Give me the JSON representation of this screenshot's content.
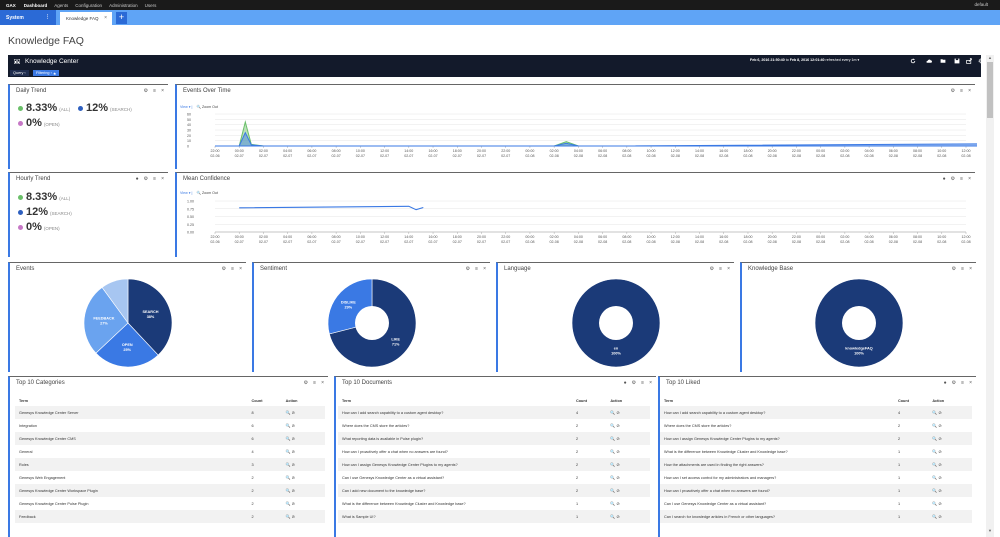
{
  "topbar": {
    "brand": "GAX",
    "nav": [
      "Dashboard",
      "Agents",
      "Configuration",
      "Administration",
      "Users"
    ],
    "user": "default"
  },
  "tabs": {
    "system_label": "System",
    "system_menu": "⋮",
    "active_tab": "Knowledge FAQ",
    "close": "×",
    "add": "+"
  },
  "page": {
    "title": "Knowledge FAQ"
  },
  "dashboard": {
    "title": "Knowledge Center",
    "range_from": "Feb 6, 2016 21:50:40",
    "range_to": "Feb 8, 2016 12:01:40",
    "range_sep": "to",
    "refresh": "refreshed every 1m",
    "filters": {
      "query": "Query",
      "filtering": "Filtering"
    }
  },
  "panels": {
    "daily_trend": {
      "title": "Daily Trend",
      "kpis": [
        {
          "value": "8.33%",
          "label": "(ALL)",
          "color": "#6abf69"
        },
        {
          "value": "12%",
          "label": "(SEARCH)",
          "color": "#2d5fbf"
        },
        {
          "value": "0%",
          "label": "(OPEN)",
          "color": "#c678c6"
        }
      ]
    },
    "hourly_trend": {
      "title": "Hourly Trend",
      "kpis": [
        {
          "value": "8.33%",
          "label": "(ALL)",
          "color": "#6abf69"
        },
        {
          "value": "12%",
          "label": "(SEARCH)",
          "color": "#2d5fbf"
        },
        {
          "value": "0%",
          "label": "(OPEN)",
          "color": "#c678c6"
        }
      ]
    },
    "events_over_time": {
      "title": "Events Over Time",
      "view": "View",
      "zoom_out": "Zoom Out"
    },
    "mean_confidence": {
      "title": "Mean Confidence",
      "view": "View",
      "zoom_out": "Zoom Out"
    },
    "events": {
      "title": "Events"
    },
    "sentiment": {
      "title": "Sentiment"
    },
    "language": {
      "title": "Language"
    },
    "knowledge_base": {
      "title": "Knowledge Base"
    },
    "tools": {
      "gear": "⚙",
      "menu": "≡",
      "close": "×",
      "info": "●"
    }
  },
  "chart_data": [
    {
      "type": "area",
      "panel": "Events Over Time",
      "x_tick_times": [
        "22:00",
        "00:00",
        "02:00",
        "04:00",
        "06:00",
        "08:00",
        "10:00",
        "12:00",
        "14:00",
        "16:00",
        "18:00",
        "20:00",
        "22:00",
        "00:00",
        "02:00",
        "04:00",
        "06:00",
        "08:00",
        "10:00",
        "12:00",
        "14:00",
        "16:00",
        "18:00",
        "20:00",
        "22:00",
        "00:00",
        "02:00",
        "04:00",
        "06:00",
        "08:00",
        "10:00",
        "12:00"
      ],
      "x_tick_dates": [
        "02-06",
        "02-07",
        "02-07",
        "02-07",
        "02-07",
        "02-07",
        "02-07",
        "02-07",
        "02-07",
        "02-07",
        "02-07",
        "02-07",
        "02-07",
        "02-08",
        "02-08",
        "02-08",
        "02-08",
        "02-08",
        "02-08",
        "02-08",
        "02-08",
        "02-08",
        "02-08",
        "02-08",
        "02-08",
        "02-08",
        "02-08",
        "02-08",
        "02-08",
        "02-08",
        "02-08",
        "02-08"
      ],
      "y_ticks": [
        "60",
        "50",
        "40",
        "30",
        "20",
        "10",
        "0"
      ],
      "ylim": [
        0,
        60
      ],
      "series": [
        {
          "color": "#6abf69",
          "x": [
            0,
            1,
            1.25,
            1.5,
            2,
            14,
            14.5,
            15,
            16,
            31.5,
            32
          ],
          "y": [
            0,
            0,
            45,
            3,
            0,
            0,
            8,
            0,
            0,
            0,
            0
          ]
        },
        {
          "color": "#3a79e4",
          "x": [
            0,
            1,
            1.25,
            1.5,
            2,
            14,
            14.5,
            15,
            16,
            31.5,
            32
          ],
          "y": [
            0,
            0,
            25,
            2,
            0,
            0,
            5,
            0,
            0,
            4,
            0
          ]
        }
      ]
    },
    {
      "type": "line",
      "panel": "Mean Confidence",
      "x_tick_times": [
        "22:00",
        "00:00",
        "02:00",
        "04:00",
        "06:00",
        "08:00",
        "10:00",
        "12:00",
        "14:00",
        "16:00",
        "18:00",
        "20:00",
        "22:00",
        "00:00",
        "02:00",
        "04:00",
        "06:00",
        "08:00",
        "10:00",
        "12:00",
        "14:00",
        "16:00",
        "18:00",
        "20:00",
        "22:00",
        "00:00",
        "02:00",
        "04:00",
        "06:00",
        "08:00",
        "10:00",
        "12:00"
      ],
      "x_tick_dates": [
        "02-06",
        "02-07",
        "02-07",
        "02-07",
        "02-07",
        "02-07",
        "02-07",
        "02-07",
        "02-07",
        "02-07",
        "02-07",
        "02-07",
        "02-07",
        "02-08",
        "02-08",
        "02-08",
        "02-08",
        "02-08",
        "02-08",
        "02-08",
        "02-08",
        "02-08",
        "02-08",
        "02-08",
        "02-08",
        "02-08",
        "02-08",
        "02-08",
        "02-08",
        "02-08",
        "02-08",
        "02-08"
      ],
      "y_ticks": [
        "1.00",
        "0.75",
        "0.50",
        "0.25",
        "0.00"
      ],
      "ylim": [
        0,
        1
      ],
      "series": [
        {
          "color": "#3a79e4",
          "x": [
            1,
            8,
            8.3,
            8.6
          ],
          "y": [
            0.78,
            0.83,
            0.72,
            0.79
          ]
        }
      ]
    },
    {
      "type": "pie",
      "panel": "Events",
      "slices": [
        {
          "label": "SEARCH",
          "pct": "38%",
          "value": 38,
          "color": "#1b3a78",
          "text": "#ffffff"
        },
        {
          "label": "OPEN",
          "pct": "25%",
          "value": 25,
          "color": "#3a79e4",
          "text": "#ffffff"
        },
        {
          "label": "FEEDBACK",
          "pct": "27%",
          "value": 27,
          "color": "#6aa3ef",
          "text": "#ffffff"
        },
        {
          "label": "",
          "pct": "",
          "value": 10,
          "color": "#a7c6f1",
          "text": "#ffffff"
        }
      ]
    },
    {
      "type": "pie",
      "panel": "Sentiment",
      "slices": [
        {
          "label": "LIKE",
          "pct": "71%",
          "value": 71,
          "color": "#1b3a78",
          "text": "#ffffff"
        },
        {
          "label": "DISLIKE",
          "pct": "29%",
          "value": 29,
          "color": "#3a79e4",
          "text": "#ffffff"
        }
      ]
    },
    {
      "type": "pie",
      "panel": "Language",
      "slices": [
        {
          "label": "en",
          "pct": "100%",
          "value": 100,
          "color": "#1b3a78",
          "text": "#ffffff"
        }
      ]
    },
    {
      "type": "pie",
      "panel": "Knowledge Base",
      "slices": [
        {
          "label": "knowledgeFAQ",
          "pct": "100%",
          "value": 100,
          "color": "#1b3a78",
          "text": "#ffffff"
        }
      ]
    }
  ],
  "tables": {
    "top_categories": {
      "title": "Top 10 Categories",
      "headers": [
        "Term",
        "Count",
        "Action"
      ],
      "rows": [
        [
          "Genesys Knowledge Center Server",
          "8"
        ],
        [
          "Integration",
          "6"
        ],
        [
          "Genesys Knowledge Center CMS",
          "6"
        ],
        [
          "General",
          "4"
        ],
        [
          "Roles",
          "3"
        ],
        [
          "Genesys Web Engagement",
          "2"
        ],
        [
          "Genesys Knowledge Center Workspace Plugin",
          "2"
        ],
        [
          "Genesys Knowledge Center Pulse Plugin",
          "2"
        ],
        [
          "Feedback",
          "2"
        ]
      ]
    },
    "top_documents": {
      "title": "Top 10 Documents",
      "headers": [
        "Term",
        "Count",
        "Action"
      ],
      "rows": [
        [
          "How can I add search capability to a custom agent desktop?",
          "4"
        ],
        [
          "Where does the CMS store the articles?",
          "2"
        ],
        [
          "What reporting data is available in Pulse plugin?",
          "2"
        ],
        [
          "How can I proactively offer a chat when no answers are found?",
          "2"
        ],
        [
          "How can I assign Genesys Knowledge Center Plugins to my agents?",
          "2"
        ],
        [
          "Can I use Genesys Knowledge Center as a virtual assistant?",
          "2"
        ],
        [
          "Can I add new document to the knowledge base?",
          "2"
        ],
        [
          "What is the difference between Knowledge Cluster and Knowledge base?",
          "1"
        ],
        [
          "What is Sample UI?",
          "1"
        ]
      ]
    },
    "top_liked": {
      "title": "Top 10 Liked",
      "headers": [
        "Term",
        "Count",
        "Action"
      ],
      "rows": [
        [
          "How can I add search capability to a custom agent desktop?",
          "4"
        ],
        [
          "Where does the CMS store the articles?",
          "2"
        ],
        [
          "How can I assign Genesys Knowledge Center Plugins to my agents?",
          "2"
        ],
        [
          "What is the difference between Knowledge Cluster and Knowledge base?",
          "1"
        ],
        [
          "How the attachments are used in finding the right answers?",
          "1"
        ],
        [
          "How can I set access control for my administrators and managers?",
          "1"
        ],
        [
          "How can I proactively offer a chat when no answers are found?",
          "1"
        ],
        [
          "Can I use Genesys Knowledge Center as a virtual assistant?",
          "1"
        ],
        [
          "Can I search for knowledge articles in French or other languages?",
          "1"
        ]
      ]
    },
    "action_icons": "🔍 ⊘"
  }
}
